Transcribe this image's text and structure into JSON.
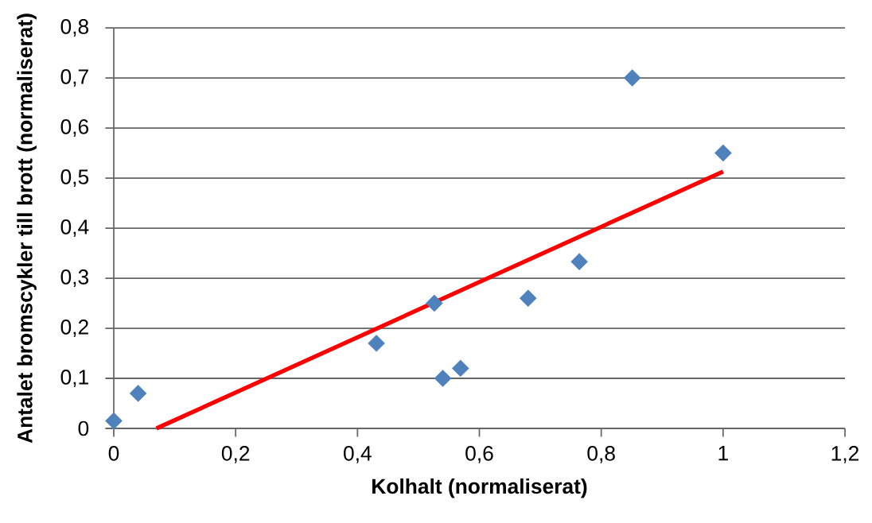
{
  "chart_data": {
    "type": "scatter",
    "xlabel": "Kolhalt (normaliserat)",
    "ylabel": "Antalet bromscykler till brott (normaliserat)",
    "series": [
      {
        "color": "#4f81bd",
        "marker": "diamond",
        "x": [
          0,
          0.04,
          0.431,
          0.526,
          0.54,
          0.569,
          0.68,
          0.764,
          0.851,
          1.0
        ],
        "values": [
          0.015,
          0.07,
          0.17,
          0.25,
          0.1,
          0.12,
          0.26,
          0.333,
          0.7,
          0.55
        ]
      },
      {
        "type": "line",
        "color": "#ff0000",
        "marker": "none",
        "line_style": "solid",
        "x": [
          0.07,
          1.0
        ],
        "values": [
          0,
          0.513
        ]
      }
    ],
    "xlim": [
      0,
      1.2
    ],
    "ylim": [
      0,
      0.8
    ],
    "xticks": [
      0,
      {
        "value": 0.2,
        "label": "0,2"
      },
      {
        "value": 0.4,
        "label": "0,4"
      },
      {
        "value": 0.6,
        "label": "0,6"
      },
      {
        "value": 0.8,
        "label": "0,8"
      },
      1,
      {
        "value": 1.2,
        "label": "1,2"
      }
    ],
    "yticks": [
      0,
      {
        "value": 0.1,
        "label": "0,1"
      },
      {
        "value": 0.2,
        "label": "0,2"
      },
      {
        "value": 0.3,
        "label": "0,3"
      },
      {
        "value": 0.4,
        "label": "0,4"
      },
      {
        "value": 0.5,
        "label": "0,5"
      },
      {
        "value": 0.6,
        "label": "0,6"
      },
      {
        "value": 0.7,
        "label": "0,7"
      },
      {
        "value": 0.8,
        "label": "0,8"
      }
    ],
    "grid": "y"
  }
}
